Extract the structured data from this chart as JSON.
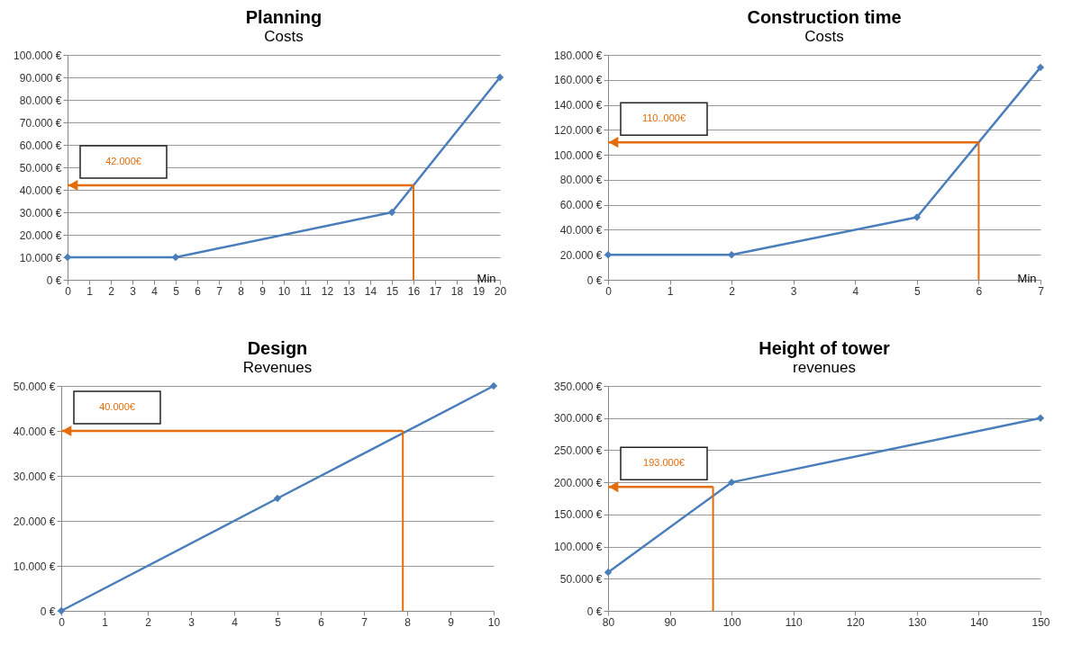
{
  "chart_data": [
    {
      "type": "line",
      "title": "Planning",
      "subtitle": "Costs",
      "xlabel": "Min",
      "x": [
        0,
        5,
        15,
        20
      ],
      "series": [
        {
          "color": "#4a7ebb",
          "values": [
            10000,
            10000,
            30000,
            90000
          ]
        }
      ],
      "xlim": [
        0,
        20
      ],
      "xticks": [
        0,
        1,
        2,
        3,
        4,
        5,
        6,
        7,
        8,
        9,
        10,
        11,
        12,
        13,
        14,
        15,
        16,
        17,
        18,
        19,
        20
      ],
      "ylim": [
        0,
        100000
      ],
      "yticks": [
        {
          "value": 0,
          "label": "0 €"
        },
        {
          "value": 10000,
          "label": "10.000 €"
        },
        {
          "value": 20000,
          "label": "20.000 €"
        },
        {
          "value": 30000,
          "label": "30.000 €"
        },
        {
          "value": 40000,
          "label": "40.000 €"
        },
        {
          "value": 50000,
          "label": "50.000 €"
        },
        {
          "value": 60000,
          "label": "60.000 €"
        },
        {
          "value": 70000,
          "label": "70.000 €"
        },
        {
          "value": 80000,
          "label": "80.000 €"
        },
        {
          "value": 90000,
          "label": "90.000 €"
        },
        {
          "value": 100000,
          "label": "100.000 €"
        }
      ],
      "grid": "y",
      "marker": "diamond",
      "line_style": "solid",
      "ref_lines": [
        {
          "axis": "x",
          "value": 16,
          "color": "#e46c0a"
        },
        {
          "axis": "y",
          "value": 42000,
          "label": "42.000€",
          "color": "#e46c0a"
        }
      ]
    },
    {
      "type": "line",
      "title": "Construction time",
      "subtitle": "Costs",
      "xlabel": "Min",
      "x": [
        0,
        2,
        5,
        7
      ],
      "series": [
        {
          "color": "#4a7ebb",
          "values": [
            20000,
            20000,
            50000,
            170000
          ]
        }
      ],
      "xlim": [
        0,
        7
      ],
      "xticks": [
        0,
        1,
        2,
        3,
        4,
        5,
        6,
        7
      ],
      "ylim": [
        0,
        180000
      ],
      "yticks": [
        {
          "value": 0,
          "label": "0 €"
        },
        {
          "value": 20000,
          "label": "20.000 €"
        },
        {
          "value": 40000,
          "label": "40.000 €"
        },
        {
          "value": 60000,
          "label": "60.000 €"
        },
        {
          "value": 80000,
          "label": "80.000 €"
        },
        {
          "value": 100000,
          "label": "100.000 €"
        },
        {
          "value": 120000,
          "label": "120.000 €"
        },
        {
          "value": 140000,
          "label": "140.000 €"
        },
        {
          "value": 160000,
          "label": "160.000 €"
        },
        {
          "value": 180000,
          "label": "180.000 €"
        }
      ],
      "grid": "y",
      "marker": "diamond",
      "line_style": "solid",
      "ref_lines": [
        {
          "axis": "x",
          "value": 6,
          "color": "#e46c0a"
        },
        {
          "axis": "y",
          "value": 110000,
          "label": "110..000€",
          "color": "#e46c0a"
        }
      ]
    },
    {
      "type": "line",
      "title": "Design",
      "subtitle": "Revenues",
      "x": [
        0,
        5,
        10
      ],
      "series": [
        {
          "color": "#4a7ebb",
          "values": [
            0,
            25000,
            50000
          ]
        }
      ],
      "xlim": [
        0,
        10
      ],
      "xticks": [
        0,
        1,
        2,
        3,
        4,
        5,
        6,
        7,
        8,
        9,
        10
      ],
      "ylim": [
        0,
        50000
      ],
      "yticks": [
        {
          "value": 0,
          "label": "0 €"
        },
        {
          "value": 10000,
          "label": "10.000 €"
        },
        {
          "value": 20000,
          "label": "20.000 €"
        },
        {
          "value": 30000,
          "label": "30.000 €"
        },
        {
          "value": 40000,
          "label": "40.000 €"
        },
        {
          "value": 50000,
          "label": "50.000 €"
        }
      ],
      "grid": "y",
      "marker": "diamond",
      "line_style": "solid",
      "ref_lines": [
        {
          "axis": "x",
          "value": 7.9,
          "color": "#e46c0a"
        },
        {
          "axis": "y",
          "value": 40000,
          "label": "40.000€",
          "color": "#e46c0a"
        }
      ]
    },
    {
      "type": "line",
      "title": "Height of tower",
      "subtitle": "revenues",
      "x": [
        80,
        100,
        150
      ],
      "series": [
        {
          "color": "#4a7ebb",
          "values": [
            60000,
            200000,
            300000
          ]
        }
      ],
      "xlim": [
        80,
        150
      ],
      "xticks": [
        80,
        90,
        100,
        110,
        120,
        130,
        140,
        150
      ],
      "ylim": [
        0,
        350000
      ],
      "yticks": [
        {
          "value": 0,
          "label": "0 €"
        },
        {
          "value": 50000,
          "label": "50.000 €"
        },
        {
          "value": 100000,
          "label": "100.000 €"
        },
        {
          "value": 150000,
          "label": "150.000 €"
        },
        {
          "value": 200000,
          "label": "200.000 €"
        },
        {
          "value": 250000,
          "label": "250.000 €"
        },
        {
          "value": 300000,
          "label": "300.000 €"
        },
        {
          "value": 350000,
          "label": "350.000 €"
        }
      ],
      "grid": "y",
      "marker": "diamond",
      "line_style": "solid",
      "ref_lines": [
        {
          "axis": "x",
          "value": 97,
          "color": "#e46c0a"
        },
        {
          "axis": "y",
          "value": 193000,
          "label": "193.000€",
          "color": "#e46c0a"
        }
      ]
    }
  ]
}
